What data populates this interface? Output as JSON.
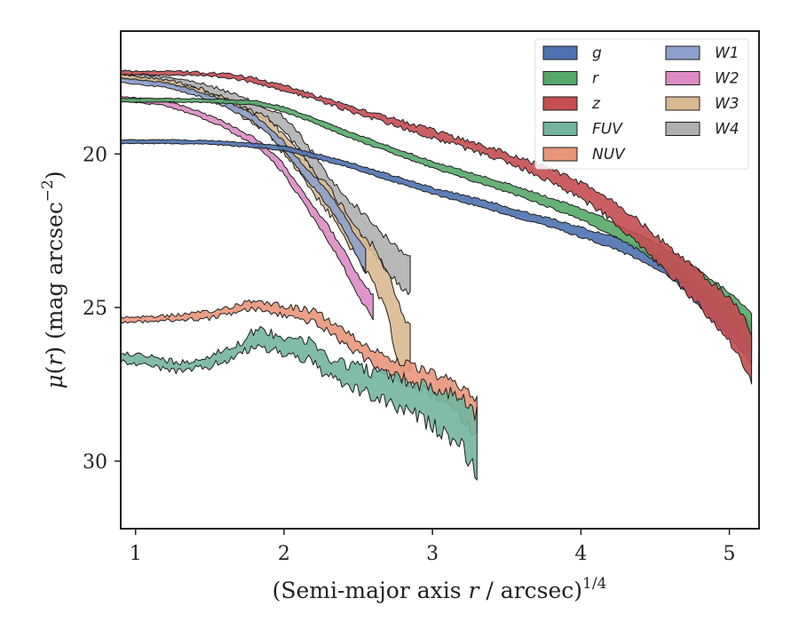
{
  "chart_data": {
    "type": "area",
    "xlabel_main": "(Semi-major axis ",
    "xlabel_var": "r",
    "xlabel_tail": " / arcsec)",
    "xlabel_sup": "1/4",
    "ylabel_mu": "μ",
    "ylabel_open": "(",
    "ylabel_var": "r",
    "ylabel_close": ") (mag arcsec",
    "ylabel_sup": "−2",
    "ylabel_end": ")",
    "xlim": [
      0.9,
      5.2
    ],
    "ylim": [
      32.2,
      16.0
    ],
    "y_inverted": true,
    "xticks": [
      1,
      2,
      3,
      4,
      5
    ],
    "yticks": [
      20,
      25,
      30
    ],
    "legend": {
      "position": "top-right",
      "columns": 2
    },
    "series": [
      {
        "name": "g",
        "color": "#4c72b0",
        "points": [
          [
            0.9,
            19.6
          ],
          [
            1.2,
            19.6
          ],
          [
            1.5,
            19.62
          ],
          [
            1.8,
            19.72
          ],
          [
            2.0,
            19.82
          ],
          [
            2.2,
            20.05
          ],
          [
            2.4,
            20.3
          ],
          [
            2.6,
            20.6
          ],
          [
            2.8,
            20.9
          ],
          [
            3.0,
            21.2
          ],
          [
            3.2,
            21.45
          ],
          [
            3.4,
            21.7
          ],
          [
            3.6,
            22.0
          ],
          [
            3.8,
            22.25
          ],
          [
            4.0,
            22.55
          ],
          [
            4.2,
            22.85
          ],
          [
            4.4,
            23.25
          ],
          [
            4.5,
            23.45
          ],
          [
            4.6,
            23.7
          ],
          [
            4.7,
            24.1
          ],
          [
            4.8,
            24.55
          ],
          [
            4.9,
            25.0
          ],
          [
            5.0,
            25.4
          ],
          [
            5.1,
            25.9
          ],
          [
            5.15,
            26.2
          ]
        ],
        "halfwidth": [
          0.06,
          0.06,
          0.06,
          0.07,
          0.07,
          0.08,
          0.08,
          0.09,
          0.1,
          0.1,
          0.11,
          0.12,
          0.13,
          0.14,
          0.16,
          0.18,
          0.2,
          0.25,
          0.3,
          0.35,
          0.4,
          0.5,
          0.55,
          0.6,
          0.65
        ],
        "noise": 0.05
      },
      {
        "name": "r",
        "color": "#55a868",
        "points": [
          [
            0.9,
            18.25
          ],
          [
            1.2,
            18.25
          ],
          [
            1.5,
            18.27
          ],
          [
            1.8,
            18.33
          ],
          [
            2.0,
            18.55
          ],
          [
            2.2,
            18.9
          ],
          [
            2.4,
            19.3
          ],
          [
            2.6,
            19.65
          ],
          [
            2.8,
            20.0
          ],
          [
            3.0,
            20.35
          ],
          [
            3.2,
            20.65
          ],
          [
            3.4,
            20.95
          ],
          [
            3.6,
            21.25
          ],
          [
            3.8,
            21.6
          ],
          [
            4.0,
            21.95
          ],
          [
            4.2,
            22.4
          ],
          [
            4.4,
            22.9
          ],
          [
            4.6,
            23.5
          ],
          [
            4.8,
            24.2
          ],
          [
            5.0,
            25.0
          ],
          [
            5.1,
            25.5
          ],
          [
            5.15,
            25.8
          ]
        ],
        "halfwidth": [
          0.06,
          0.06,
          0.06,
          0.07,
          0.08,
          0.08,
          0.09,
          0.1,
          0.1,
          0.11,
          0.12,
          0.13,
          0.14,
          0.16,
          0.18,
          0.22,
          0.26,
          0.32,
          0.4,
          0.5,
          0.55,
          0.6
        ],
        "noise": 0.05
      },
      {
        "name": "z",
        "color": "#c44e52",
        "points": [
          [
            0.9,
            17.35
          ],
          [
            1.3,
            17.37
          ],
          [
            1.6,
            17.45
          ],
          [
            1.8,
            17.6
          ],
          [
            2.0,
            17.85
          ],
          [
            2.2,
            18.15
          ],
          [
            2.4,
            18.45
          ],
          [
            2.6,
            18.75
          ],
          [
            2.8,
            19.05
          ],
          [
            3.0,
            19.35
          ],
          [
            3.2,
            19.65
          ],
          [
            3.4,
            19.95
          ],
          [
            3.6,
            20.3
          ],
          [
            3.8,
            20.7
          ],
          [
            4.0,
            21.2
          ],
          [
            4.2,
            21.8
          ],
          [
            4.4,
            22.6
          ],
          [
            4.6,
            23.5
          ],
          [
            4.8,
            24.4
          ],
          [
            5.0,
            25.4
          ],
          [
            5.1,
            26.1
          ],
          [
            5.15,
            26.6
          ]
        ],
        "halfwidth": [
          0.06,
          0.06,
          0.06,
          0.07,
          0.08,
          0.08,
          0.09,
          0.1,
          0.11,
          0.12,
          0.13,
          0.14,
          0.16,
          0.2,
          0.25,
          0.3,
          0.38,
          0.45,
          0.55,
          0.7,
          0.8,
          0.8
        ],
        "noise": 0.12
      },
      {
        "name": "FUV",
        "color": "#73b5a0",
        "points": [
          [
            0.9,
            26.6
          ],
          [
            1.1,
            26.75
          ],
          [
            1.3,
            26.95
          ],
          [
            1.5,
            26.75
          ],
          [
            1.7,
            26.35
          ],
          [
            1.8,
            26.0
          ],
          [
            1.9,
            26.1
          ],
          [
            2.0,
            26.2
          ],
          [
            2.1,
            26.3
          ],
          [
            2.2,
            26.5
          ],
          [
            2.3,
            26.95
          ],
          [
            2.4,
            27.15
          ],
          [
            2.5,
            27.3
          ],
          [
            2.6,
            27.5
          ],
          [
            2.7,
            27.65
          ],
          [
            2.8,
            27.85
          ],
          [
            2.9,
            28.0
          ],
          [
            3.0,
            28.25
          ],
          [
            3.1,
            28.45
          ],
          [
            3.2,
            28.7
          ],
          [
            3.3,
            29.5
          ]
        ],
        "halfwidth": [
          0.15,
          0.15,
          0.15,
          0.18,
          0.2,
          0.25,
          0.28,
          0.28,
          0.3,
          0.3,
          0.35,
          0.35,
          0.4,
          0.4,
          0.45,
          0.5,
          0.55,
          0.6,
          0.7,
          0.8,
          1.0
        ],
        "noise": 0.3
      },
      {
        "name": "NUV",
        "color": "#e8967a",
        "points": [
          [
            0.9,
            25.4
          ],
          [
            1.2,
            25.35
          ],
          [
            1.5,
            25.25
          ],
          [
            1.7,
            25.0
          ],
          [
            1.8,
            24.9
          ],
          [
            1.9,
            25.0
          ],
          [
            2.0,
            25.1
          ],
          [
            2.1,
            25.2
          ],
          [
            2.2,
            25.3
          ],
          [
            2.3,
            25.6
          ],
          [
            2.4,
            25.95
          ],
          [
            2.5,
            26.3
          ],
          [
            2.6,
            26.6
          ],
          [
            2.7,
            26.9
          ],
          [
            2.8,
            27.1
          ],
          [
            2.9,
            27.3
          ],
          [
            3.0,
            27.5
          ],
          [
            3.1,
            27.75
          ],
          [
            3.2,
            28.1
          ],
          [
            3.3,
            28.6
          ]
        ],
        "halfwidth": [
          0.08,
          0.08,
          0.1,
          0.12,
          0.15,
          0.15,
          0.16,
          0.17,
          0.18,
          0.2,
          0.22,
          0.22,
          0.25,
          0.28,
          0.3,
          0.32,
          0.35,
          0.4,
          0.5,
          0.6
        ],
        "noise": 0.18
      },
      {
        "name": "W1",
        "color": "#8da0cb",
        "points": [
          [
            0.9,
            17.6
          ],
          [
            1.2,
            17.75
          ],
          [
            1.4,
            18.0
          ],
          [
            1.6,
            18.35
          ],
          [
            1.8,
            18.85
          ],
          [
            1.9,
            19.25
          ],
          [
            2.0,
            19.75
          ],
          [
            2.1,
            20.35
          ],
          [
            2.2,
            20.9
          ],
          [
            2.3,
            21.5
          ],
          [
            2.4,
            22.2
          ],
          [
            2.5,
            23.1
          ],
          [
            2.55,
            23.5
          ]
        ],
        "halfwidth": [
          0.07,
          0.08,
          0.08,
          0.1,
          0.12,
          0.13,
          0.15,
          0.17,
          0.2,
          0.22,
          0.25,
          0.3,
          0.35
        ],
        "noise": 0.06
      },
      {
        "name": "W2",
        "color": "#dd8bc4",
        "points": [
          [
            0.9,
            18.2
          ],
          [
            1.2,
            18.35
          ],
          [
            1.4,
            18.65
          ],
          [
            1.6,
            19.05
          ],
          [
            1.8,
            19.6
          ],
          [
            1.9,
            20.0
          ],
          [
            2.0,
            20.5
          ],
          [
            2.1,
            21.2
          ],
          [
            2.2,
            21.9
          ],
          [
            2.3,
            22.6
          ],
          [
            2.4,
            23.4
          ],
          [
            2.5,
            24.3
          ],
          [
            2.6,
            25.0
          ]
        ],
        "halfwidth": [
          0.07,
          0.08,
          0.09,
          0.1,
          0.12,
          0.13,
          0.15,
          0.18,
          0.2,
          0.24,
          0.28,
          0.32,
          0.38
        ],
        "noise": 0.07
      },
      {
        "name": "W3",
        "color": "#d9b990",
        "points": [
          [
            0.9,
            17.5
          ],
          [
            1.2,
            17.65
          ],
          [
            1.4,
            17.9
          ],
          [
            1.6,
            18.3
          ],
          [
            1.8,
            18.85
          ],
          [
            1.9,
            19.1
          ],
          [
            2.0,
            19.7
          ],
          [
            2.1,
            20.2
          ],
          [
            2.2,
            20.9
          ],
          [
            2.3,
            21.5
          ],
          [
            2.4,
            22.2
          ],
          [
            2.5,
            22.95
          ],
          [
            2.6,
            23.6
          ],
          [
            2.7,
            24.6
          ],
          [
            2.75,
            25.5
          ],
          [
            2.8,
            26.2
          ],
          [
            2.85,
            26.3
          ]
        ],
        "halfwidth": [
          0.07,
          0.08,
          0.09,
          0.12,
          0.18,
          0.25,
          0.3,
          0.35,
          0.38,
          0.42,
          0.45,
          0.5,
          0.6,
          0.7,
          0.9,
          0.9,
          0.8
        ],
        "noise": 0.15
      },
      {
        "name": "W4",
        "color": "#b0b0b0",
        "points": [
          [
            0.9,
            17.45
          ],
          [
            1.2,
            17.55
          ],
          [
            1.4,
            17.75
          ],
          [
            1.6,
            18.05
          ],
          [
            1.8,
            18.5
          ],
          [
            2.0,
            19.0
          ],
          [
            2.1,
            19.6
          ],
          [
            2.2,
            20.3
          ],
          [
            2.3,
            21.1
          ],
          [
            2.4,
            21.7
          ],
          [
            2.5,
            22.2
          ],
          [
            2.6,
            22.7
          ],
          [
            2.7,
            23.3
          ],
          [
            2.8,
            23.8
          ],
          [
            2.85,
            23.9
          ]
        ],
        "halfwidth": [
          0.07,
          0.08,
          0.09,
          0.12,
          0.16,
          0.22,
          0.25,
          0.3,
          0.35,
          0.38,
          0.42,
          0.45,
          0.5,
          0.6,
          0.65
        ],
        "noise": 0.12
      }
    ]
  }
}
